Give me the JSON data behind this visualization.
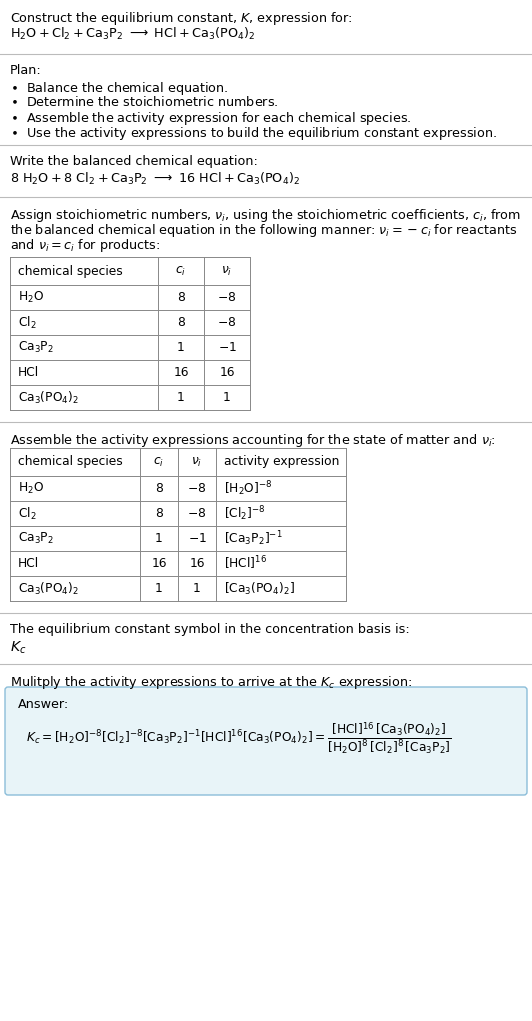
{
  "bg_color": "#ffffff",
  "text_color": "#000000",
  "title_line1": "Construct the equilibrium constant, $K$, expression for:",
  "plan_header": "Plan:",
  "balanced_header": "Write the balanced chemical equation:",
  "table1_cols": [
    "chemical species",
    "$c_i$",
    "$\\nu_i$"
  ],
  "table1_data": [
    [
      "$\\mathrm{H_2O}$",
      "8",
      "$-8$"
    ],
    [
      "$\\mathrm{Cl_2}$",
      "8",
      "$-8$"
    ],
    [
      "$\\mathrm{Ca_3P_2}$",
      "1",
      "$-1$"
    ],
    [
      "HCl",
      "16",
      "16"
    ],
    [
      "$\\mathrm{Ca_3(PO_4)_2}$",
      "1",
      "1"
    ]
  ],
  "table2_data": [
    [
      "$\\mathrm{H_2O}$",
      "8",
      "$-8$",
      "$[\\mathrm{H_2O}]^{-8}$"
    ],
    [
      "$\\mathrm{Cl_2}$",
      "8",
      "$-8$",
      "$[\\mathrm{Cl_2}]^{-8}$"
    ],
    [
      "$\\mathrm{Ca_3P_2}$",
      "1",
      "$-1$",
      "$[\\mathrm{Ca_3P_2}]^{-1}$"
    ],
    [
      "HCl",
      "16",
      "16",
      "$[\\mathrm{HCl}]^{16}$"
    ],
    [
      "$\\mathrm{Ca_3(PO_4)_2}$",
      "1",
      "1",
      "$[\\mathrm{Ca_3(PO_4)_2}]$"
    ]
  ],
  "kc_header": "The equilibrium constant symbol in the concentration basis is:",
  "kc_symbol": "$K_c$",
  "multiply_header": "Mulitply the activity expressions to arrive at the $K_c$ expression:",
  "answer_box_color": "#e8f4f8",
  "answer_box_border": "#8bbdd9",
  "answer_label": "Answer:"
}
